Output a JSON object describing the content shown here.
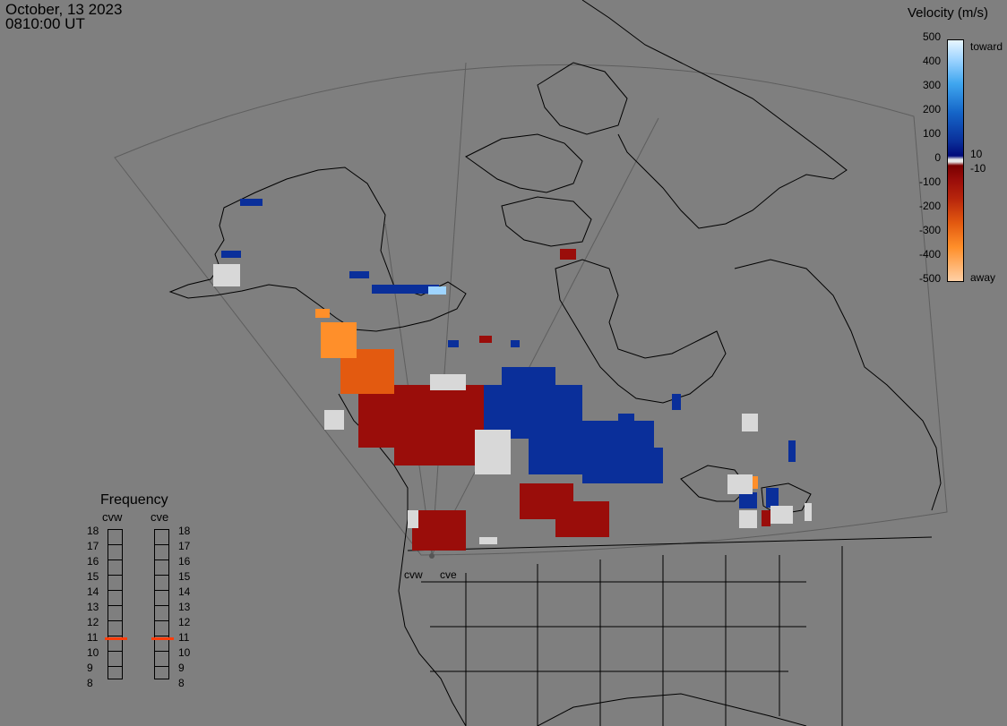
{
  "header": {
    "date": "October, 13 2023",
    "time": "0810:00 UT"
  },
  "velocity_scale": {
    "title": "Velocity (m/s)",
    "ticks": [
      "500",
      "400",
      "300",
      "200",
      "100",
      "0",
      "-100",
      "-200",
      "-300",
      "-400",
      "-500"
    ],
    "labels": {
      "toward": "toward",
      "ten": "10",
      "minus_ten": "-10",
      "away": "away"
    },
    "range": [
      -500,
      500
    ],
    "colors": {
      "toward": "#0a2f9a",
      "away": "#9a0d0a",
      "ground_scatter": "#d8d8d8",
      "fast_away": "#ff8f2a",
      "fast_toward": "#9ed4ff"
    }
  },
  "frequency_panel": {
    "title": "Frequency",
    "radars": [
      {
        "name": "cvw",
        "frequency_mhz": 10.8
      },
      {
        "name": "cve",
        "frequency_mhz": 10.8
      }
    ],
    "levels": [
      "18",
      "17",
      "16",
      "15",
      "14",
      "13",
      "12",
      "11",
      "10",
      "9",
      "8"
    ],
    "marker_color": "#ff3d0a"
  },
  "radar_sites": {
    "left": "cvw",
    "right": "cve"
  },
  "map_colors": {
    "background": "#7f7f7f",
    "coastline": "#000000",
    "fov": "#5a5a5a"
  }
}
